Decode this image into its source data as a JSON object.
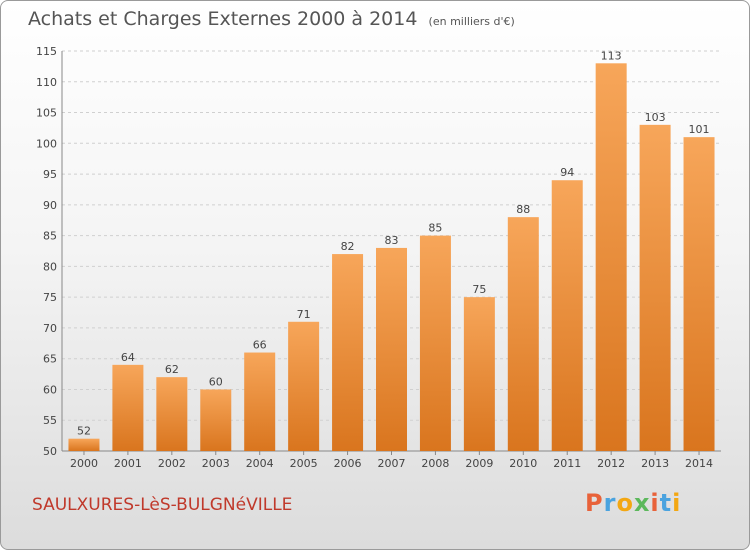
{
  "header": {
    "title": "Achats et Charges Externes 2000 à 2014",
    "unit": "(en milliers d'€)"
  },
  "footer": {
    "place": "SAULXURES-LèS-BULGNéVILLE",
    "logo_letters": [
      "P",
      "r",
      "o",
      "x",
      "i",
      "t",
      "i"
    ],
    "logo_colors": [
      "#e8623a",
      "#4aa3df",
      "#f3a712",
      "#5cb85c",
      "#e8623a",
      "#4aa3df",
      "#f3a712"
    ]
  },
  "colors": {
    "bar_light": "#f7a65a",
    "bar_dark": "#d9751e",
    "grid": "#d0d0d0"
  },
  "chart_data": {
    "type": "bar",
    "title": "Achats et Charges Externes 2000 à 2014",
    "subtitle": "(en milliers d'€)",
    "categories": [
      "2000",
      "2001",
      "2002",
      "2003",
      "2004",
      "2005",
      "2006",
      "2007",
      "2008",
      "2009",
      "2010",
      "2011",
      "2012",
      "2013",
      "2014"
    ],
    "values": [
      52,
      64,
      62,
      60,
      66,
      71,
      82,
      83,
      85,
      75,
      88,
      94,
      113,
      103,
      101
    ],
    "ylim": [
      50,
      115
    ],
    "yticks": [
      50,
      55,
      60,
      65,
      70,
      75,
      80,
      85,
      90,
      95,
      100,
      105,
      110,
      115
    ],
    "grid": true
  }
}
